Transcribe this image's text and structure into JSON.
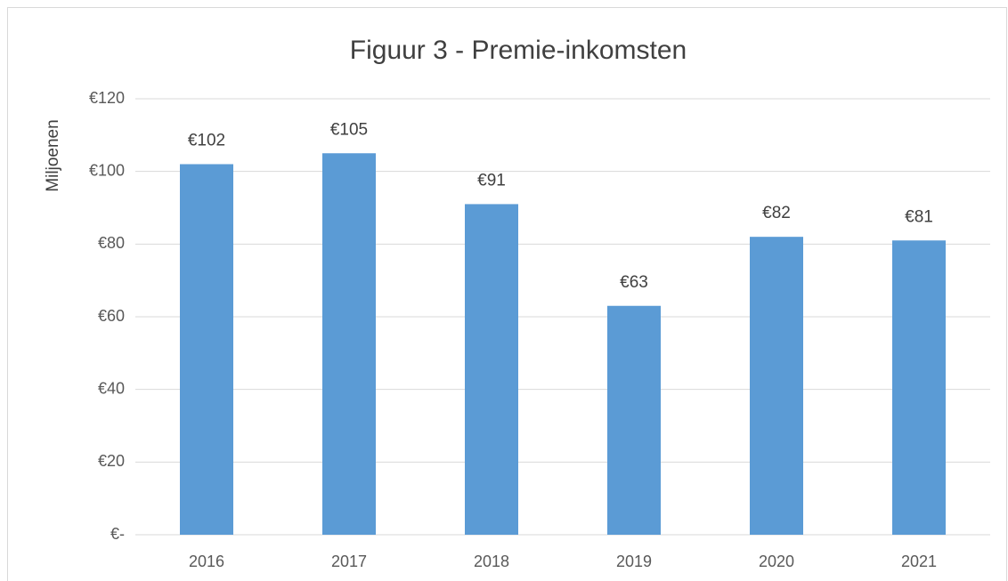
{
  "chart_data": {
    "type": "bar",
    "title": "Figuur 3 - Premie-inkomsten",
    "y_axis_label": "Miljoenen",
    "categories": [
      "2016",
      "2017",
      "2018",
      "2019",
      "2020",
      "2021"
    ],
    "values": [
      102,
      105,
      91,
      63,
      82,
      81
    ],
    "value_labels": [
      "€102",
      "€105",
      "€91",
      "€63",
      "€82",
      "€81"
    ],
    "color": "#5b9bd5",
    "ylim": [
      0,
      120
    ],
    "yticks": [
      {
        "value": 0,
        "label": "€-"
      },
      {
        "value": 20,
        "label": "€20"
      },
      {
        "value": 40,
        "label": "€40"
      },
      {
        "value": 60,
        "label": "€60"
      },
      {
        "value": 80,
        "label": "€80"
      },
      {
        "value": 100,
        "label": "€100"
      },
      {
        "value": 120,
        "label": "€120"
      }
    ],
    "grid": true
  }
}
